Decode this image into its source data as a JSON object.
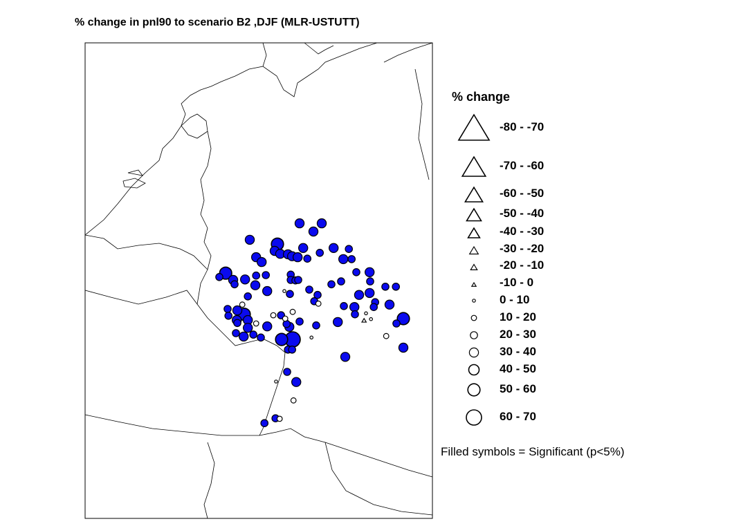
{
  "title": "% change in pnl90 to scenario B2 ,DJF (MLR-USTUTT)",
  "legend": {
    "title": "% change",
    "items": [
      {
        "label": "-80 - -70",
        "shape": "triangle"
      },
      {
        "label": "-70 - -60",
        "shape": "triangle"
      },
      {
        "label": "-60 - -50",
        "shape": "triangle"
      },
      {
        "label": "-50 - -40",
        "shape": "triangle"
      },
      {
        "label": "-40 - -30",
        "shape": "triangle"
      },
      {
        "label": "-30 - -20",
        "shape": "triangle"
      },
      {
        "label": "-20 - -10",
        "shape": "triangle"
      },
      {
        "label": "-10 - 0",
        "shape": "triangle"
      },
      {
        "label": "0 - 10",
        "shape": "circle"
      },
      {
        "label": "10 - 20",
        "shape": "circle"
      },
      {
        "label": "20 - 30",
        "shape": "circle"
      },
      {
        "label": "30 - 40",
        "shape": "circle"
      },
      {
        "label": "40 - 50",
        "shape": "circle"
      },
      {
        "label": "50 - 60",
        "shape": "circle"
      },
      {
        "label": "60 - 70",
        "shape": "circle"
      }
    ],
    "footnote": "Filled symbols = Significant (p<5%)"
  },
  "colors": {
    "significant": "#0a0aee",
    "outline": "#000000",
    "coast": "#000000"
  },
  "stations": [
    {
      "lon": 10.75,
      "lat": 52.27,
      "cls": "30 - 40",
      "sig": true
    },
    {
      "lon": 11.55,
      "lat": 52.27,
      "cls": "30 - 40",
      "sig": true
    },
    {
      "lon": 11.25,
      "lat": 52.1,
      "cls": "30 - 40",
      "sig": true
    },
    {
      "lon": 8.95,
      "lat": 51.93,
      "cls": "30 - 40",
      "sig": true
    },
    {
      "lon": 9.95,
      "lat": 51.84,
      "cls": "50 - 60",
      "sig": true
    },
    {
      "lon": 9.85,
      "lat": 51.7,
      "cls": "30 - 40",
      "sig": true
    },
    {
      "lon": 10.05,
      "lat": 51.64,
      "cls": "30 - 40",
      "sig": true
    },
    {
      "lon": 10.33,
      "lat": 51.63,
      "cls": "30 - 40",
      "sig": true
    },
    {
      "lon": 10.48,
      "lat": 51.59,
      "cls": "30 - 40",
      "sig": true
    },
    {
      "lon": 10.68,
      "lat": 51.57,
      "cls": "30 - 40",
      "sig": true
    },
    {
      "lon": 10.88,
      "lat": 51.76,
      "cls": "30 - 40",
      "sig": true
    },
    {
      "lon": 11.03,
      "lat": 51.54,
      "cls": "20 - 30",
      "sig": true
    },
    {
      "lon": 11.48,
      "lat": 51.66,
      "cls": "20 - 30",
      "sig": true
    },
    {
      "lon": 11.98,
      "lat": 51.76,
      "cls": "30 - 40",
      "sig": true
    },
    {
      "lon": 12.53,
      "lat": 51.74,
      "cls": "20 - 30",
      "sig": true
    },
    {
      "lon": 12.33,
      "lat": 51.53,
      "cls": "30 - 40",
      "sig": true
    },
    {
      "lon": 12.63,
      "lat": 51.53,
      "cls": "20 - 30",
      "sig": true
    },
    {
      "lon": 9.18,
      "lat": 51.57,
      "cls": "30 - 40",
      "sig": true
    },
    {
      "lon": 9.38,
      "lat": 51.47,
      "cls": "30 - 40",
      "sig": true
    },
    {
      "lon": 8.08,
      "lat": 51.24,
      "cls": "50 - 60",
      "sig": true
    },
    {
      "lon": 7.85,
      "lat": 51.16,
      "cls": "20 - 30",
      "sig": true
    },
    {
      "lon": 8.35,
      "lat": 51.1,
      "cls": "30 - 40",
      "sig": true
    },
    {
      "lon": 8.4,
      "lat": 51.01,
      "cls": "20 - 30",
      "sig": true
    },
    {
      "lon": 8.78,
      "lat": 51.11,
      "cls": "30 - 40",
      "sig": true
    },
    {
      "lon": 9.18,
      "lat": 51.19,
      "cls": "20 - 30",
      "sig": true
    },
    {
      "lon": 9.53,
      "lat": 51.2,
      "cls": "20 - 30",
      "sig": true
    },
    {
      "lon": 9.15,
      "lat": 50.99,
      "cls": "30 - 40",
      "sig": true
    },
    {
      "lon": 9.58,
      "lat": 50.87,
      "cls": "30 - 40",
      "sig": true
    },
    {
      "lon": 8.88,
      "lat": 50.76,
      "cls": "20 - 30",
      "sig": true
    },
    {
      "lon": 10.43,
      "lat": 51.21,
      "cls": "20 - 30",
      "sig": true
    },
    {
      "lon": 10.43,
      "lat": 51.1,
      "cls": "20 - 30",
      "sig": true
    },
    {
      "lon": 10.6,
      "lat": 51.09,
      "cls": "20 - 30",
      "sig": true
    },
    {
      "lon": 10.7,
      "lat": 51.1,
      "cls": "20 - 30",
      "sig": true
    },
    {
      "lon": 10.2,
      "lat": 50.87,
      "cls": "0 - 10",
      "sig": false
    },
    {
      "lon": 10.4,
      "lat": 50.81,
      "cls": "20 - 30",
      "sig": true
    },
    {
      "lon": 11.1,
      "lat": 50.9,
      "cls": "20 - 30",
      "sig": true
    },
    {
      "lon": 11.4,
      "lat": 50.79,
      "cls": "20 - 30",
      "sig": true
    },
    {
      "lon": 11.28,
      "lat": 50.66,
      "cls": "20 - 30",
      "sig": true
    },
    {
      "lon": 11.43,
      "lat": 50.61,
      "cls": "10 - 20",
      "sig": false
    },
    {
      "lon": 11.9,
      "lat": 51.01,
      "cls": "20 - 30",
      "sig": true
    },
    {
      "lon": 12.25,
      "lat": 51.07,
      "cls": "20 - 30",
      "sig": true
    },
    {
      "lon": 12.8,
      "lat": 51.26,
      "cls": "20 - 30",
      "sig": true
    },
    {
      "lon": 13.28,
      "lat": 51.26,
      "cls": "30 - 40",
      "sig": true
    },
    {
      "lon": 13.3,
      "lat": 51.07,
      "cls": "20 - 30",
      "sig": true
    },
    {
      "lon": 13.85,
      "lat": 50.96,
      "cls": "20 - 30",
      "sig": true
    },
    {
      "lon": 14.23,
      "lat": 50.96,
      "cls": "20 - 30",
      "sig": true
    },
    {
      "lon": 12.9,
      "lat": 50.79,
      "cls": "30 - 40",
      "sig": true
    },
    {
      "lon": 13.28,
      "lat": 50.83,
      "cls": "30 - 40",
      "sig": true
    },
    {
      "lon": 13.48,
      "lat": 50.64,
      "cls": "20 - 30",
      "sig": true
    },
    {
      "lon": 13.43,
      "lat": 50.54,
      "cls": "20 - 30",
      "sig": true
    },
    {
      "lon": 14.0,
      "lat": 50.59,
      "cls": "30 - 40",
      "sig": true
    },
    {
      "lon": 12.35,
      "lat": 50.56,
      "cls": "20 - 30",
      "sig": true
    },
    {
      "lon": 12.73,
      "lat": 50.54,
      "cls": "30 - 40",
      "sig": true
    },
    {
      "lon": 12.75,
      "lat": 50.39,
      "cls": "20 - 30",
      "sig": true
    },
    {
      "lon": 13.15,
      "lat": 50.41,
      "cls": "0 - 10",
      "sig": false
    },
    {
      "lon": 13.08,
      "lat": 50.26,
      "cls": "-10 - 0",
      "sig": false
    },
    {
      "lon": 13.33,
      "lat": 50.29,
      "cls": "0 - 10",
      "sig": false
    },
    {
      "lon": 14.5,
      "lat": 50.3,
      "cls": "50 - 60",
      "sig": true
    },
    {
      "lon": 14.25,
      "lat": 50.2,
      "cls": "20 - 30",
      "sig": true
    },
    {
      "lon": 13.88,
      "lat": 49.94,
      "cls": "10 - 20",
      "sig": false
    },
    {
      "lon": 14.5,
      "lat": 49.7,
      "cls": "30 - 40",
      "sig": true
    },
    {
      "lon": 12.4,
      "lat": 49.51,
      "cls": "30 - 40",
      "sig": true
    },
    {
      "lon": 12.13,
      "lat": 50.23,
      "cls": "30 - 40",
      "sig": true
    },
    {
      "lon": 11.35,
      "lat": 50.16,
      "cls": "20 - 30",
      "sig": true
    },
    {
      "lon": 10.75,
      "lat": 50.24,
      "cls": "20 - 30",
      "sig": true
    },
    {
      "lon": 11.18,
      "lat": 49.91,
      "cls": "0 - 10",
      "sig": false
    },
    {
      "lon": 10.5,
      "lat": 50.44,
      "cls": "10 - 20",
      "sig": false
    },
    {
      "lon": 9.8,
      "lat": 50.37,
      "cls": "10 - 20",
      "sig": false
    },
    {
      "lon": 10.08,
      "lat": 50.37,
      "cls": "20 - 30",
      "sig": true
    },
    {
      "lon": 10.23,
      "lat": 50.3,
      "cls": "10 - 20",
      "sig": false
    },
    {
      "lon": 10.28,
      "lat": 50.19,
      "cls": "20 - 30",
      "sig": true
    },
    {
      "lon": 10.38,
      "lat": 50.13,
      "cls": "30 - 40",
      "sig": true
    },
    {
      "lon": 10.1,
      "lat": 49.87,
      "cls": "50 - 60",
      "sig": true
    },
    {
      "lon": 10.5,
      "lat": 49.87,
      "cls": "60 - 70",
      "sig": true
    },
    {
      "lon": 10.33,
      "lat": 49.66,
      "cls": "20 - 30",
      "sig": true
    },
    {
      "lon": 10.48,
      "lat": 49.66,
      "cls": "20 - 30",
      "sig": true
    },
    {
      "lon": 8.68,
      "lat": 50.59,
      "cls": "10 - 20",
      "sig": false
    },
    {
      "lon": 8.15,
      "lat": 50.5,
      "cls": "20 - 30",
      "sig": true
    },
    {
      "lon": 8.18,
      "lat": 50.36,
      "cls": "20 - 30",
      "sig": true
    },
    {
      "lon": 8.5,
      "lat": 50.47,
      "cls": "30 - 40",
      "sig": true
    },
    {
      "lon": 8.75,
      "lat": 50.39,
      "cls": "50 - 60",
      "sig": true
    },
    {
      "lon": 8.88,
      "lat": 50.27,
      "cls": "30 - 40",
      "sig": true
    },
    {
      "lon": 8.48,
      "lat": 50.27,
      "cls": "30 - 40",
      "sig": true
    },
    {
      "lon": 8.5,
      "lat": 50.21,
      "cls": "20 - 30",
      "sig": true
    },
    {
      "lon": 9.18,
      "lat": 50.2,
      "cls": "10 - 20",
      "sig": false
    },
    {
      "lon": 8.88,
      "lat": 50.11,
      "cls": "30 - 40",
      "sig": true
    },
    {
      "lon": 9.58,
      "lat": 50.14,
      "cls": "30 - 40",
      "sig": true
    },
    {
      "lon": 8.45,
      "lat": 50.0,
      "cls": "20 - 30",
      "sig": true
    },
    {
      "lon": 8.73,
      "lat": 49.93,
      "cls": "30 - 40",
      "sig": true
    },
    {
      "lon": 9.08,
      "lat": 49.97,
      "cls": "20 - 30",
      "sig": true
    },
    {
      "lon": 9.35,
      "lat": 49.91,
      "cls": "20 - 30",
      "sig": true
    },
    {
      "lon": 10.3,
      "lat": 49.2,
      "cls": "20 - 30",
      "sig": true
    },
    {
      "lon": 10.63,
      "lat": 48.99,
      "cls": "30 - 40",
      "sig": true
    },
    {
      "lon": 9.9,
      "lat": 49.0,
      "cls": "0 - 10",
      "sig": false
    },
    {
      "lon": 10.53,
      "lat": 48.61,
      "cls": "10 - 20",
      "sig": false
    },
    {
      "lon": 9.88,
      "lat": 48.24,
      "cls": "20 - 30",
      "sig": true
    },
    {
      "lon": 10.03,
      "lat": 48.23,
      "cls": "10 - 20",
      "sig": false
    },
    {
      "lon": 9.48,
      "lat": 48.14,
      "cls": "20 - 30",
      "sig": true
    }
  ]
}
